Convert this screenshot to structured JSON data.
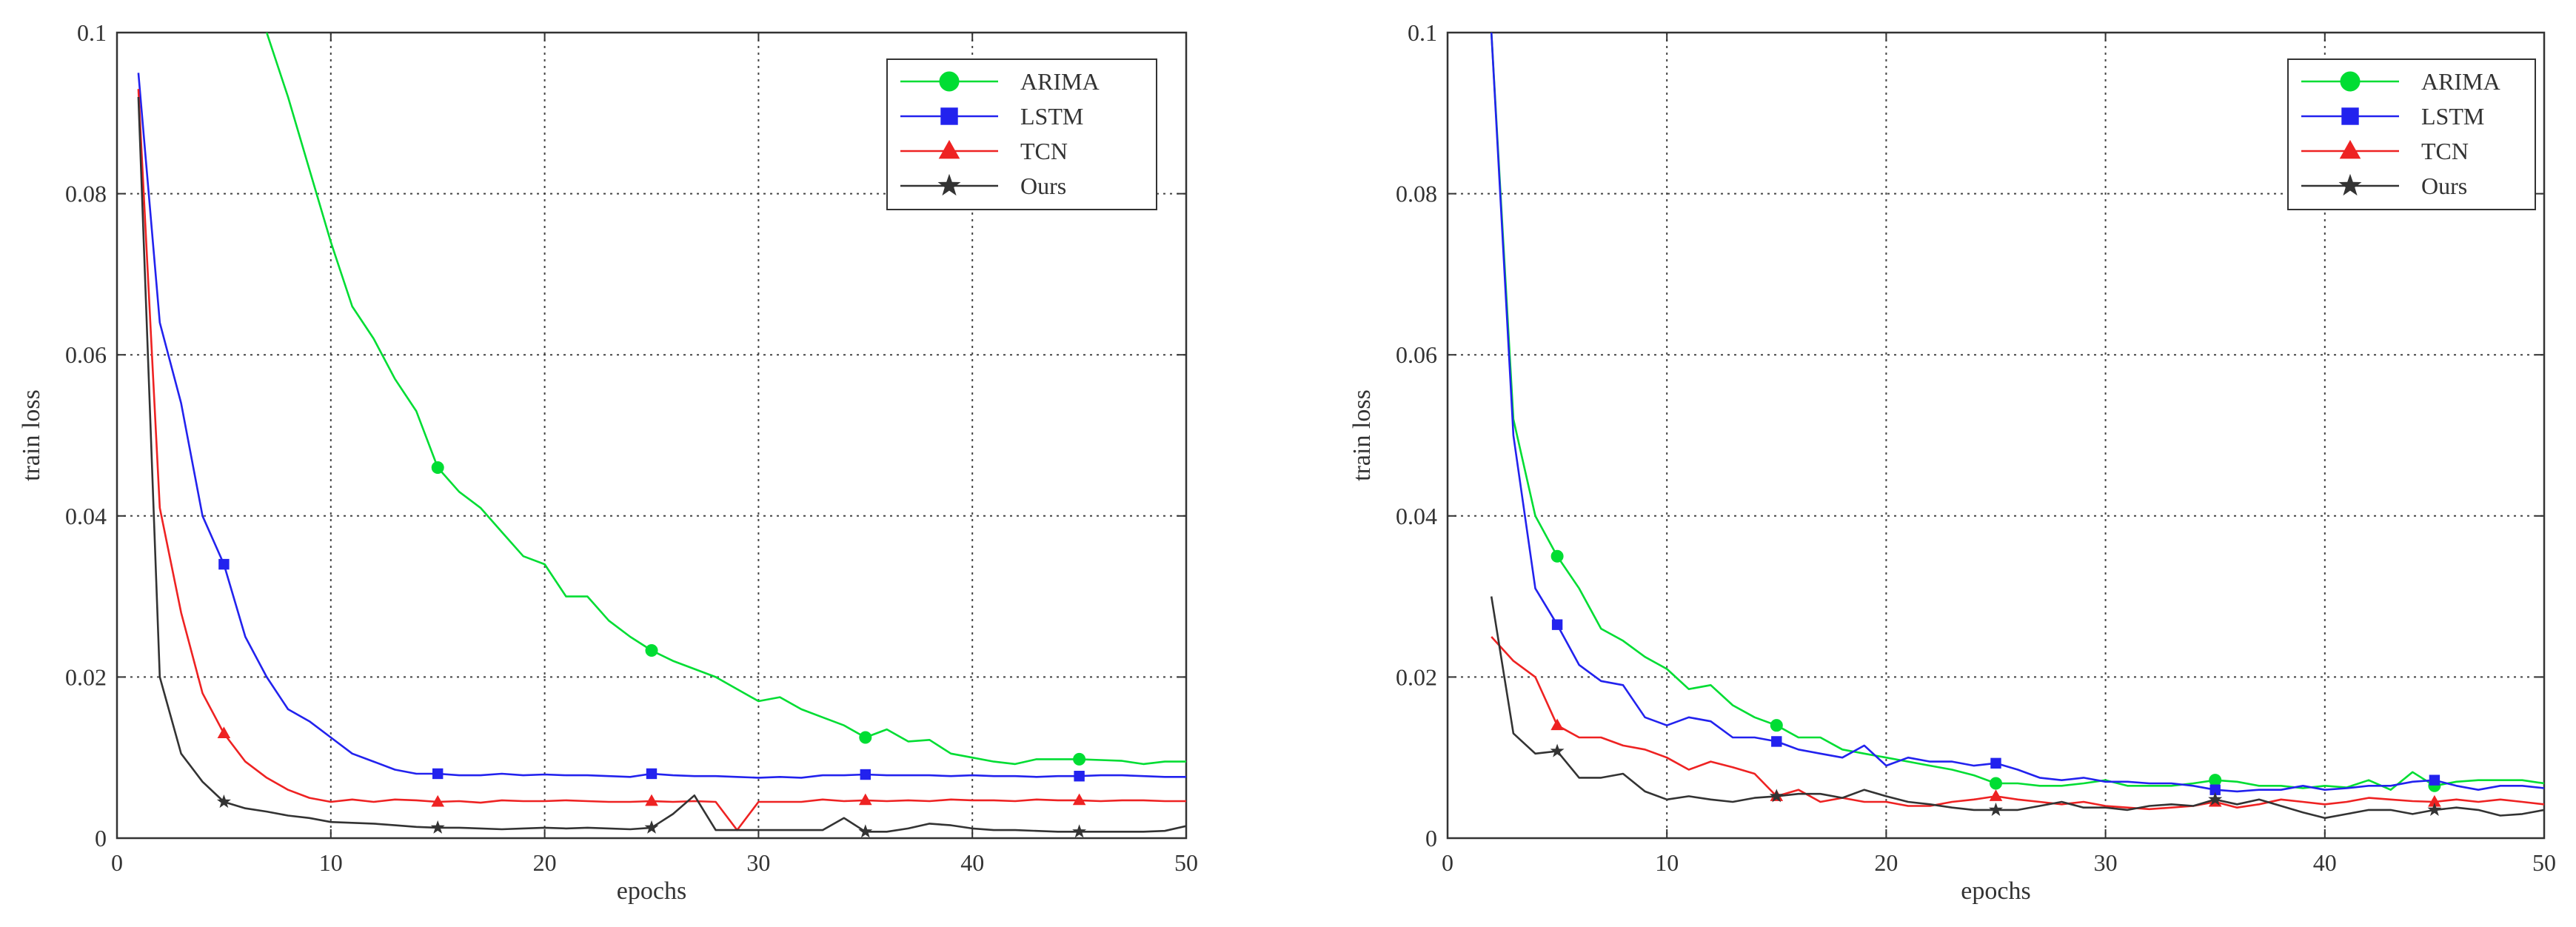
{
  "chart_data": [
    {
      "type": "line",
      "xlabel": "epochs",
      "ylabel": "train loss",
      "xlim": [
        0,
        50
      ],
      "ylim": [
        0,
        0.1
      ],
      "xticks": [
        0,
        10,
        20,
        30,
        40,
        50
      ],
      "yticks": [
        0,
        0.02,
        0.04,
        0.06,
        0.08,
        0.1
      ],
      "xtick_labels": [
        "0",
        "10",
        "20",
        "30",
        "40",
        "50"
      ],
      "ytick_labels": [
        "0",
        "0.02",
        "0.04",
        "0.06",
        "0.08",
        "0.1"
      ],
      "grid": true,
      "legend_position": "top-right",
      "series": [
        {
          "name": "ARIMA",
          "color": "#00dd33",
          "marker": "circle",
          "x": [
            7,
            8,
            9,
            10,
            11,
            12,
            13,
            14,
            15,
            16,
            17,
            18,
            19,
            20,
            21,
            22,
            23,
            24,
            25,
            26,
            27,
            28,
            29,
            30,
            31,
            32,
            33,
            34,
            35,
            36,
            37,
            38,
            39,
            40,
            41,
            42,
            43,
            44,
            45,
            46,
            47,
            48,
            49,
            50
          ],
          "values": [
            0.1,
            0.092,
            0.083,
            0.074,
            0.066,
            0.062,
            0.057,
            0.053,
            0.046,
            0.043,
            0.041,
            0.038,
            0.035,
            0.034,
            0.03,
            0.03,
            0.027,
            0.025,
            0.0233,
            0.022,
            0.021,
            0.02,
            0.0185,
            0.017,
            0.0175,
            0.016,
            0.015,
            0.014,
            0.0125,
            0.0135,
            0.012,
            0.0122,
            0.0105,
            0.01,
            0.0095,
            0.0092,
            0.0098,
            0.0098,
            0.0098,
            0.0097,
            0.0096,
            0.0092,
            0.0095,
            0.0095
          ],
          "marker_x": [
            15,
            25,
            35,
            45
          ]
        },
        {
          "name": "LSTM",
          "color": "#2222ee",
          "marker": "square",
          "x": [
            1,
            2,
            3,
            4,
            5,
            6,
            7,
            8,
            9,
            10,
            11,
            12,
            13,
            14,
            15,
            16,
            17,
            18,
            19,
            20,
            21,
            22,
            23,
            24,
            25,
            26,
            27,
            28,
            29,
            30,
            31,
            32,
            33,
            34,
            35,
            36,
            37,
            38,
            39,
            40,
            41,
            42,
            43,
            44,
            45,
            46,
            47,
            48,
            49,
            50
          ],
          "values": [
            0.095,
            0.064,
            0.054,
            0.04,
            0.034,
            0.025,
            0.02,
            0.016,
            0.0145,
            0.0125,
            0.0105,
            0.0095,
            0.0085,
            0.008,
            0.008,
            0.0078,
            0.0078,
            0.008,
            0.0078,
            0.0079,
            0.0078,
            0.0078,
            0.0077,
            0.0076,
            0.008,
            0.0078,
            0.0077,
            0.0077,
            0.0076,
            0.0075,
            0.0076,
            0.0075,
            0.0078,
            0.0078,
            0.0079,
            0.0078,
            0.0078,
            0.0078,
            0.0077,
            0.0078,
            0.0077,
            0.0077,
            0.0076,
            0.0077,
            0.0077,
            0.0078,
            0.0078,
            0.0077,
            0.0076,
            0.0076
          ],
          "marker_x": [
            5,
            15,
            25,
            35,
            45
          ]
        },
        {
          "name": "TCN",
          "color": "#ee2222",
          "marker": "triangle",
          "x": [
            1,
            2,
            3,
            4,
            5,
            6,
            7,
            8,
            9,
            10,
            11,
            12,
            13,
            14,
            15,
            16,
            17,
            18,
            19,
            20,
            21,
            22,
            23,
            24,
            25,
            26,
            27,
            28,
            29,
            30,
            31,
            32,
            33,
            34,
            35,
            36,
            37,
            38,
            39,
            40,
            41,
            42,
            43,
            44,
            45,
            46,
            47,
            48,
            49,
            50
          ],
          "values": [
            0.093,
            0.041,
            0.028,
            0.018,
            0.013,
            0.0095,
            0.0075,
            0.006,
            0.005,
            0.0045,
            0.0048,
            0.0045,
            0.0048,
            0.0047,
            0.0045,
            0.0046,
            0.0044,
            0.0047,
            0.0046,
            0.0046,
            0.0047,
            0.0046,
            0.0045,
            0.0045,
            0.0046,
            0.0045,
            0.0046,
            0.0045,
            0.001,
            0.0045,
            0.0045,
            0.0045,
            0.0048,
            0.0046,
            0.0047,
            0.0046,
            0.0047,
            0.0046,
            0.0048,
            0.0047,
            0.0047,
            0.0046,
            0.0048,
            0.0047,
            0.0047,
            0.0046,
            0.0047,
            0.0047,
            0.0046,
            0.0046
          ],
          "marker_x": [
            5,
            15,
            25,
            35,
            45
          ]
        },
        {
          "name": "Ours",
          "color": "#333333",
          "marker": "star",
          "x": [
            1,
            2,
            3,
            4,
            5,
            6,
            7,
            8,
            9,
            10,
            11,
            12,
            13,
            14,
            15,
            16,
            17,
            18,
            19,
            20,
            21,
            22,
            23,
            24,
            25,
            26,
            27,
            28,
            29,
            30,
            31,
            32,
            33,
            34,
            35,
            36,
            37,
            38,
            39,
            40,
            41,
            42,
            43,
            44,
            45,
            46,
            47,
            48,
            49,
            50
          ],
          "values": [
            0.092,
            0.02,
            0.0105,
            0.007,
            0.0045,
            0.0037,
            0.0033,
            0.0028,
            0.0025,
            0.002,
            0.0019,
            0.0018,
            0.0016,
            0.0014,
            0.0013,
            0.0013,
            0.0012,
            0.0011,
            0.0012,
            0.0013,
            0.0012,
            0.0013,
            0.0012,
            0.0011,
            0.0013,
            0.003,
            0.0053,
            0.001,
            0.001,
            0.001,
            0.001,
            0.001,
            0.001,
            0.0025,
            0.0008,
            0.0008,
            0.0012,
            0.0018,
            0.0016,
            0.0012,
            0.001,
            0.001,
            0.0009,
            0.0008,
            0.0008,
            0.0008,
            0.0008,
            0.0008,
            0.0009,
            0.0015
          ],
          "marker_x": [
            5,
            15,
            25,
            35,
            45
          ]
        }
      ]
    },
    {
      "type": "line",
      "xlabel": "epochs",
      "ylabel": "train loss",
      "xlim": [
        0,
        50
      ],
      "ylim": [
        0,
        0.1
      ],
      "xticks": [
        0,
        10,
        20,
        30,
        40,
        50
      ],
      "yticks": [
        0,
        0.02,
        0.04,
        0.06,
        0.08,
        0.1
      ],
      "xtick_labels": [
        "0",
        "10",
        "20",
        "30",
        "40",
        "50"
      ],
      "ytick_labels": [
        "0",
        "0.02",
        "0.04",
        "0.06",
        "0.08",
        "0.1"
      ],
      "grid": true,
      "legend_position": "top-right",
      "series": [
        {
          "name": "ARIMA",
          "color": "#00dd33",
          "marker": "circle",
          "x": [
            2,
            3,
            4,
            5,
            6,
            7,
            8,
            9,
            10,
            11,
            12,
            13,
            14,
            15,
            16,
            17,
            18,
            19,
            20,
            21,
            22,
            23,
            24,
            25,
            26,
            27,
            28,
            29,
            30,
            31,
            32,
            33,
            34,
            35,
            36,
            37,
            38,
            39,
            40,
            41,
            42,
            43,
            44,
            45,
            46,
            47,
            48,
            49,
            50
          ],
          "values": [
            0.1,
            0.052,
            0.04,
            0.035,
            0.031,
            0.026,
            0.0245,
            0.0225,
            0.021,
            0.0185,
            0.019,
            0.0165,
            0.015,
            0.014,
            0.0125,
            0.0125,
            0.011,
            0.0105,
            0.01,
            0.0095,
            0.009,
            0.0085,
            0.0078,
            0.0068,
            0.0068,
            0.0065,
            0.0065,
            0.0068,
            0.0072,
            0.0065,
            0.0065,
            0.0065,
            0.0068,
            0.0072,
            0.007,
            0.0065,
            0.0065,
            0.0062,
            0.0065,
            0.0063,
            0.0072,
            0.006,
            0.0082,
            0.0065,
            0.007,
            0.0072,
            0.0072,
            0.0072,
            0.0068
          ],
          "marker_x": [
            5,
            15,
            25,
            35,
            45
          ]
        },
        {
          "name": "LSTM",
          "color": "#2222ee",
          "marker": "square",
          "x": [
            2,
            3,
            4,
            5,
            6,
            7,
            8,
            9,
            10,
            11,
            12,
            13,
            14,
            15,
            16,
            17,
            18,
            19,
            20,
            21,
            22,
            23,
            24,
            25,
            26,
            27,
            28,
            29,
            30,
            31,
            32,
            33,
            34,
            35,
            36,
            37,
            38,
            39,
            40,
            41,
            42,
            43,
            44,
            45,
            46,
            47,
            48,
            49,
            50
          ],
          "values": [
            0.1,
            0.05,
            0.031,
            0.0265,
            0.0215,
            0.0195,
            0.019,
            0.015,
            0.014,
            0.015,
            0.0145,
            0.0125,
            0.0125,
            0.012,
            0.011,
            0.0105,
            0.01,
            0.0115,
            0.009,
            0.01,
            0.0095,
            0.0095,
            0.009,
            0.0093,
            0.0085,
            0.0075,
            0.0072,
            0.0075,
            0.007,
            0.007,
            0.0068,
            0.0068,
            0.0065,
            0.006,
            0.0058,
            0.006,
            0.006,
            0.0065,
            0.006,
            0.0062,
            0.0065,
            0.0065,
            0.007,
            0.0072,
            0.0065,
            0.006,
            0.0065,
            0.0065,
            0.0062
          ],
          "marker_x": [
            5,
            15,
            25,
            35,
            45
          ]
        },
        {
          "name": "TCN",
          "color": "#ee2222",
          "marker": "triangle",
          "x": [
            2,
            3,
            4,
            5,
            6,
            7,
            8,
            9,
            10,
            11,
            12,
            13,
            14,
            15,
            16,
            17,
            18,
            19,
            20,
            21,
            22,
            23,
            24,
            25,
            26,
            27,
            28,
            29,
            30,
            31,
            32,
            33,
            34,
            35,
            36,
            37,
            38,
            39,
            40,
            41,
            42,
            43,
            44,
            45,
            46,
            47,
            48,
            49,
            50
          ],
          "values": [
            0.025,
            0.022,
            0.02,
            0.014,
            0.0125,
            0.0125,
            0.0115,
            0.011,
            0.01,
            0.0085,
            0.0095,
            0.0088,
            0.008,
            0.0052,
            0.006,
            0.0045,
            0.005,
            0.0045,
            0.0045,
            0.004,
            0.004,
            0.0045,
            0.0048,
            0.0052,
            0.0048,
            0.0045,
            0.0042,
            0.0045,
            0.004,
            0.0038,
            0.0036,
            0.0038,
            0.004,
            0.0045,
            0.0038,
            0.0042,
            0.0048,
            0.0045,
            0.0042,
            0.0045,
            0.005,
            0.0048,
            0.0046,
            0.0045,
            0.0048,
            0.0045,
            0.0048,
            0.0045,
            0.0042
          ],
          "marker_x": [
            5,
            15,
            25,
            35,
            45
          ]
        },
        {
          "name": "Ours",
          "color": "#333333",
          "marker": "star",
          "x": [
            2,
            3,
            4,
            5,
            6,
            7,
            8,
            9,
            10,
            11,
            12,
            13,
            14,
            15,
            16,
            17,
            18,
            19,
            20,
            21,
            22,
            23,
            24,
            25,
            26,
            27,
            28,
            29,
            30,
            31,
            32,
            33,
            34,
            35,
            36,
            37,
            38,
            39,
            40,
            41,
            42,
            43,
            44,
            45,
            46,
            47,
            48,
            49,
            50
          ],
          "values": [
            0.03,
            0.013,
            0.0105,
            0.0108,
            0.0075,
            0.0075,
            0.008,
            0.0058,
            0.0048,
            0.0052,
            0.0048,
            0.0045,
            0.005,
            0.0052,
            0.0055,
            0.0055,
            0.005,
            0.006,
            0.0052,
            0.0045,
            0.0042,
            0.0038,
            0.0035,
            0.0035,
            0.0035,
            0.004,
            0.0045,
            0.0038,
            0.0038,
            0.0035,
            0.004,
            0.0042,
            0.004,
            0.0048,
            0.0042,
            0.0048,
            0.004,
            0.0032,
            0.0025,
            0.003,
            0.0035,
            0.0035,
            0.003,
            0.0035,
            0.0038,
            0.0035,
            0.0028,
            0.003,
            0.0035
          ],
          "marker_x": [
            5,
            15,
            25,
            35,
            45
          ]
        }
      ]
    }
  ]
}
